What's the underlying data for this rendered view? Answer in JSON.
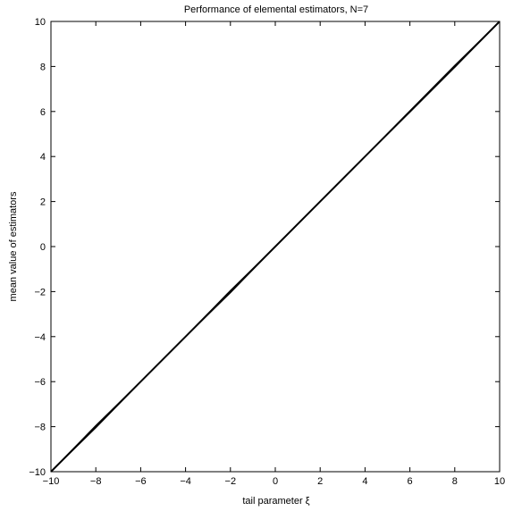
{
  "chart_data": {
    "type": "line",
    "title": "Performance of elemental estimators, N=7",
    "xlabel": "tail parameter ξ",
    "ylabel": "mean value of estimators",
    "xlim": [
      -10,
      10
    ],
    "ylim": [
      -10,
      10
    ],
    "xticks": [
      -10,
      -8,
      -6,
      -4,
      -2,
      0,
      2,
      4,
      6,
      8,
      10
    ],
    "yticks": [
      -10,
      -8,
      -6,
      -4,
      -2,
      0,
      2,
      4,
      6,
      8,
      10
    ],
    "grid": false,
    "legend": "none",
    "line_color": "#000000",
    "series": [
      {
        "x": [
          -10,
          -8,
          -6,
          -4,
          -2,
          0,
          2,
          4,
          6,
          8,
          10
        ],
        "y": [
          -10,
          -8,
          -6,
          -4,
          -2,
          0,
          2,
          4,
          6,
          8,
          10
        ]
      },
      {
        "x": [
          -10,
          -8,
          -6,
          -4,
          -2,
          0,
          2,
          4,
          6,
          8,
          10
        ],
        "y": [
          -10,
          -8.05,
          -6,
          -4,
          -2.05,
          0,
          2,
          4,
          6.03,
          8.05,
          10
        ]
      },
      {
        "x": [
          -10,
          -8,
          -6,
          -4,
          -2,
          0,
          2,
          4,
          6,
          8,
          10
        ],
        "y": [
          -10,
          -7.95,
          -6,
          -4,
          -1.95,
          0,
          2,
          4,
          5.97,
          7.96,
          10
        ]
      }
    ]
  }
}
